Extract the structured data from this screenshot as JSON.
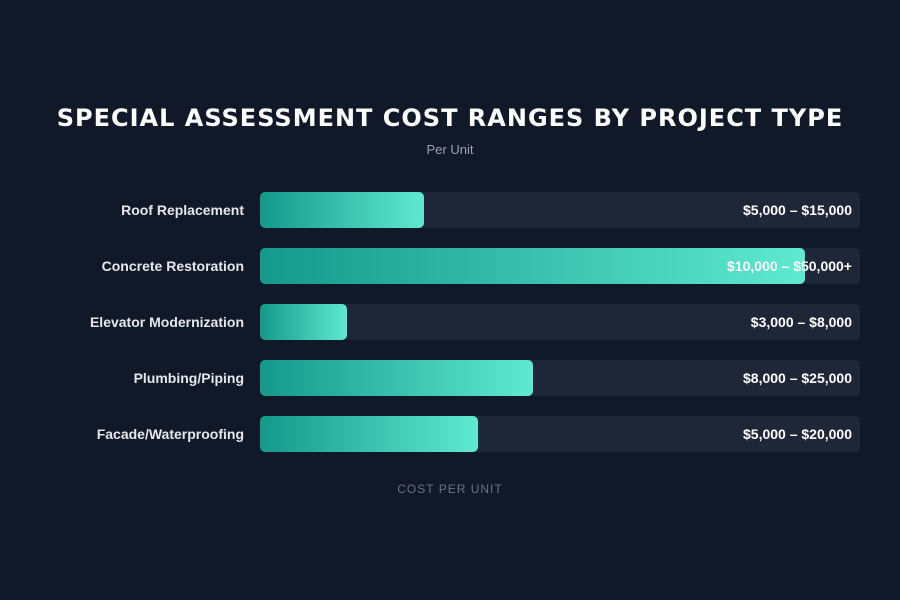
{
  "chart_data": {
    "type": "bar",
    "orientation": "horizontal",
    "title": "SPECIAL ASSESSMENT COST RANGES BY PROJECT TYPE",
    "subtitle": "Per Unit",
    "xlabel": "COST PER UNIT",
    "xlim": [
      0,
      55000
    ],
    "grid": false,
    "colors": {
      "bar_start": "#14998a",
      "bar_end": "#5ee9d0",
      "track": "#1f2637",
      "background": "#111827"
    },
    "categories": [
      "Roof Replacement",
      "Concrete Restoration",
      "Elevator Modernization",
      "Plumbing/Piping",
      "Facade/Waterproofing"
    ],
    "ranges": [
      [
        5000,
        15000
      ],
      [
        10000,
        50000
      ],
      [
        3000,
        8000
      ],
      [
        8000,
        25000
      ],
      [
        5000,
        20000
      ]
    ],
    "values": [
      15000,
      50000,
      8000,
      25000,
      20000
    ],
    "value_labels": [
      "$5,000 – $15,000",
      "$10,000 – $50,000+",
      "$3,000 – $8,000",
      "$8,000 – $25,000",
      "$5,000 – $20,000"
    ]
  }
}
